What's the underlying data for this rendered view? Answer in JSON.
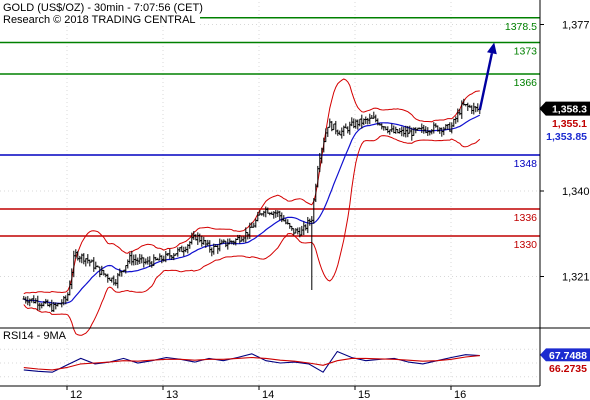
{
  "header": {
    "title": "GOLD (US$/OZ) - 30min - 7:07:56 (CET)",
    "source": "Research © 2018 TRADING CENTRAL"
  },
  "colors": {
    "background": "#ffffff",
    "grid": "#d8d8d8",
    "candle": "#000000",
    "bollinger": "#d40000",
    "moving_average": "#1010d0",
    "resistance": "#008000",
    "pivot": "#0000c0",
    "support": "#c00000",
    "arrow": "#0000a0",
    "rsi_line": "#000080",
    "rsi_signal": "#cc0000",
    "badge_black": "#000000",
    "badge_red": "#c00000",
    "badge_blue": "#1c2bd0"
  },
  "chart_data": [
    {
      "type": "candlestick",
      "title": "GOLD (US$/OZ) - 30min - 7:07:56 (CET)",
      "x_ticks": [
        "12",
        "13",
        "14",
        "15",
        "16"
      ],
      "y_ticks": [
        "1,377",
        "1,340",
        "1,321"
      ],
      "y_tick_values": [
        1377,
        1340,
        1321
      ],
      "ylim": [
        1310,
        1382
      ],
      "grid": true,
      "levels": [
        {
          "label": "1378.5",
          "value": 1378.5,
          "kind": "resistance"
        },
        {
          "label": "1373",
          "value": 1373,
          "kind": "resistance"
        },
        {
          "label": "1366",
          "value": 1366,
          "kind": "resistance"
        },
        {
          "label": "1348",
          "value": 1348,
          "kind": "pivot"
        },
        {
          "label": "1336",
          "value": 1336,
          "kind": "support"
        },
        {
          "label": "1330",
          "value": 1330,
          "kind": "support"
        }
      ],
      "price_badges": [
        {
          "label": "1,358.3",
          "value": 1358.3,
          "style": "black"
        },
        {
          "label": "1,355.1",
          "value": 1355.1,
          "style": "red"
        },
        {
          "label": "1,353.85",
          "value": 1353.85,
          "style": "blue"
        }
      ],
      "close_path": [
        {
          "day": 11.6,
          "close": 1316
        },
        {
          "day": 11.75,
          "close": 1315
        },
        {
          "day": 11.85,
          "close": 1314
        },
        {
          "day": 12.0,
          "close": 1316
        },
        {
          "day": 12.08,
          "close": 1326
        },
        {
          "day": 12.2,
          "close": 1325
        },
        {
          "day": 12.35,
          "close": 1322
        },
        {
          "day": 12.5,
          "close": 1320
        },
        {
          "day": 12.65,
          "close": 1325
        },
        {
          "day": 12.85,
          "close": 1324
        },
        {
          "day": 13.0,
          "close": 1325
        },
        {
          "day": 13.2,
          "close": 1327
        },
        {
          "day": 13.35,
          "close": 1330
        },
        {
          "day": 13.5,
          "close": 1327
        },
        {
          "day": 13.6,
          "close": 1328
        },
        {
          "day": 13.75,
          "close": 1329
        },
        {
          "day": 13.9,
          "close": 1331
        },
        {
          "day": 14.05,
          "close": 1336
        },
        {
          "day": 14.2,
          "close": 1335
        },
        {
          "day": 14.35,
          "close": 1331
        },
        {
          "day": 14.45,
          "close": 1331
        },
        {
          "day": 14.55,
          "close": 1334
        },
        {
          "day": 14.62,
          "close": 1347
        },
        {
          "day": 14.72,
          "close": 1355
        },
        {
          "day": 14.85,
          "close": 1353
        },
        {
          "day": 15.0,
          "close": 1355
        },
        {
          "day": 15.2,
          "close": 1356
        },
        {
          "day": 15.4,
          "close": 1353
        },
        {
          "day": 15.6,
          "close": 1353
        },
        {
          "day": 15.8,
          "close": 1354
        },
        {
          "day": 16.0,
          "close": 1354
        },
        {
          "day": 16.12,
          "close": 1359
        },
        {
          "day": 16.3,
          "close": 1358
        }
      ],
      "low_spike": {
        "day": 14.55,
        "low": 1318
      },
      "forecast_arrow": {
        "from_day": 16.3,
        "from": 1358,
        "to_day": 16.45,
        "to": 1373
      }
    },
    {
      "type": "line",
      "title": "RSI14 - 9MA",
      "x_ticks": [
        "12",
        "13",
        "14",
        "15",
        "16"
      ],
      "ylim": [
        0,
        100
      ],
      "series": [
        {
          "name": "RSI14",
          "values": [
            35,
            32,
            30,
            45,
            60,
            48,
            52,
            60,
            50,
            55,
            62,
            58,
            52,
            60,
            55,
            62,
            70,
            55,
            50,
            52,
            48,
            30,
            75,
            62,
            55,
            58,
            60,
            52,
            48,
            55,
            62,
            68,
            66
          ]
        },
        {
          "name": "9MA",
          "values": [
            40,
            37,
            35,
            40,
            48,
            50,
            52,
            55,
            54,
            56,
            58,
            58,
            56,
            58,
            58,
            60,
            62,
            60,
            56,
            54,
            50,
            45,
            55,
            60,
            60,
            59,
            58,
            56,
            54,
            55,
            58,
            63,
            66
          ]
        }
      ],
      "value_badges": [
        {
          "label": "67.7488",
          "value": 67.7488,
          "style": "blue"
        },
        {
          "label": "66.2735",
          "value": 66.2735,
          "style": "red"
        }
      ]
    }
  ]
}
